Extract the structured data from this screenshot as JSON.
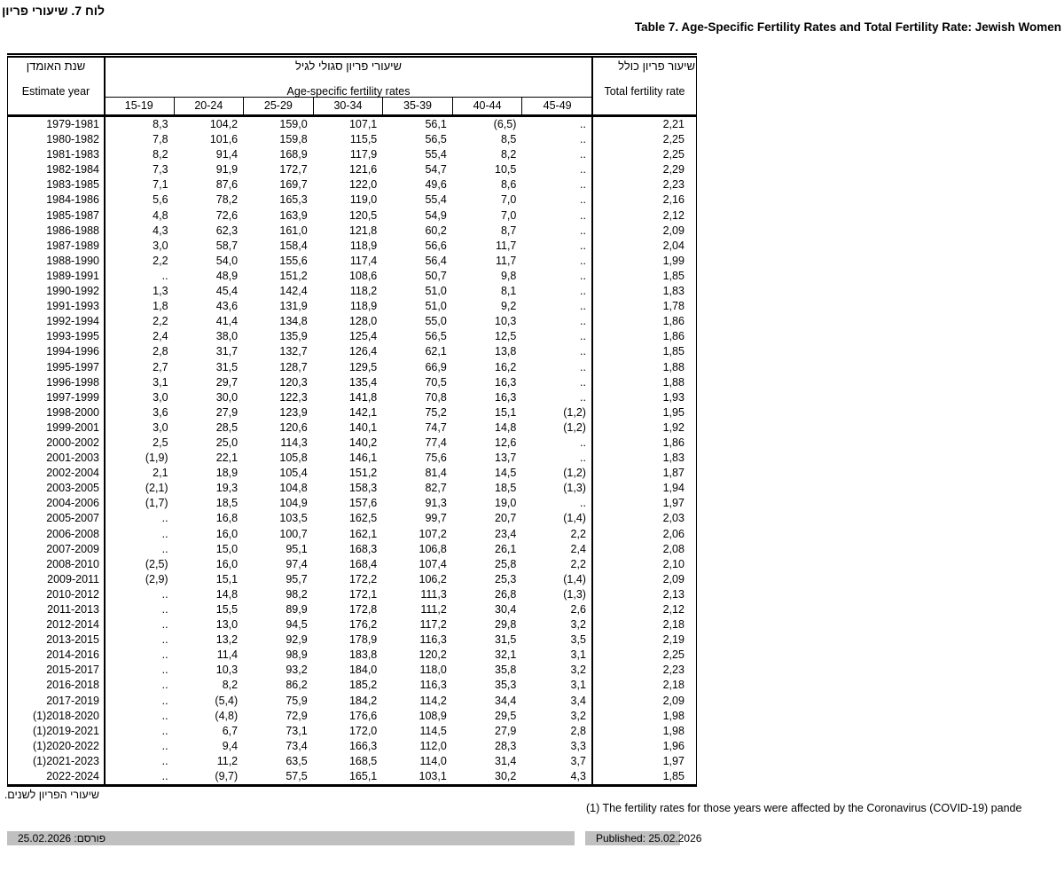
{
  "page": {
    "title_he": "לוח 7. שיעורי פריון",
    "title_en": "Table 7. Age-Specific Fertility Rates and Total Fertility Rate: Jewish Women"
  },
  "table": {
    "header": {
      "year_he": "שנת האומדן",
      "year_en": "Estimate year",
      "age_he": "שיעורי פריון סגולי לגיל",
      "age_en": "Age-specific fertility rates",
      "total_he": "שיעור פריון כולל",
      "total_en": "Total fertility rate",
      "age_groups": [
        "15-19",
        "20-24",
        "25-29",
        "30-34",
        "35-39",
        "40-44",
        "45-49"
      ]
    },
    "rows": [
      {
        "year": "1979-1981",
        "a1": "8,3",
        "a2": "104,2",
        "a3": "159,0",
        "a4": "107,1",
        "a5": "56,1",
        "a6": "(6,5)",
        "a7": "..",
        "tfr": "2,21"
      },
      {
        "year": "1980-1982",
        "a1": "7,8",
        "a2": "101,6",
        "a3": "159,8",
        "a4": "115,5",
        "a5": "56,5",
        "a6": "8,5",
        "a7": "..",
        "tfr": "2,25"
      },
      {
        "year": "1981-1983",
        "a1": "8,2",
        "a2": "91,4",
        "a3": "168,9",
        "a4": "117,9",
        "a5": "55,4",
        "a6": "8,2",
        "a7": "..",
        "tfr": "2,25"
      },
      {
        "year": "1982-1984",
        "a1": "7,3",
        "a2": "91,9",
        "a3": "172,7",
        "a4": "121,6",
        "a5": "54,7",
        "a6": "10,5",
        "a7": "..",
        "tfr": "2,29"
      },
      {
        "year": "1983-1985",
        "a1": "7,1",
        "a2": "87,6",
        "a3": "169,7",
        "a4": "122,0",
        "a5": "49,6",
        "a6": "8,6",
        "a7": "..",
        "tfr": "2,23"
      },
      {
        "year": "1984-1986",
        "a1": "5,6",
        "a2": "78,2",
        "a3": "165,3",
        "a4": "119,0",
        "a5": "55,4",
        "a6": "7,0",
        "a7": "..",
        "tfr": "2,16"
      },
      {
        "year": "1985-1987",
        "a1": "4,8",
        "a2": "72,6",
        "a3": "163,9",
        "a4": "120,5",
        "a5": "54,9",
        "a6": "7,0",
        "a7": "..",
        "tfr": "2,12"
      },
      {
        "year": "1986-1988",
        "a1": "4,3",
        "a2": "62,3",
        "a3": "161,0",
        "a4": "121,8",
        "a5": "60,2",
        "a6": "8,7",
        "a7": "..",
        "tfr": "2,09"
      },
      {
        "year": "1987-1989",
        "a1": "3,0",
        "a2": "58,7",
        "a3": "158,4",
        "a4": "118,9",
        "a5": "56,6",
        "a6": "11,7",
        "a7": "..",
        "tfr": "2,04"
      },
      {
        "year": "1988-1990",
        "a1": "2,2",
        "a2": "54,0",
        "a3": "155,6",
        "a4": "117,4",
        "a5": "56,4",
        "a6": "11,7",
        "a7": "..",
        "tfr": "1,99"
      },
      {
        "year": "1989-1991",
        "a1": "..",
        "a2": "48,9",
        "a3": "151,2",
        "a4": "108,6",
        "a5": "50,7",
        "a6": "9,8",
        "a7": "..",
        "tfr": "1,85"
      },
      {
        "year": "1990-1992",
        "a1": "1,3",
        "a2": "45,4",
        "a3": "142,4",
        "a4": "118,2",
        "a5": "51,0",
        "a6": "8,1",
        "a7": "..",
        "tfr": "1,83"
      },
      {
        "year": "1991-1993",
        "a1": "1,8",
        "a2": "43,6",
        "a3": "131,9",
        "a4": "118,9",
        "a5": "51,0",
        "a6": "9,2",
        "a7": "..",
        "tfr": "1,78"
      },
      {
        "year": "1992-1994",
        "a1": "2,2",
        "a2": "41,4",
        "a3": "134,8",
        "a4": "128,0",
        "a5": "55,0",
        "a6": "10,3",
        "a7": "..",
        "tfr": "1,86"
      },
      {
        "year": "1993-1995",
        "a1": "2,4",
        "a2": "38,0",
        "a3": "135,9",
        "a4": "125,4",
        "a5": "56,5",
        "a6": "12,5",
        "a7": "..",
        "tfr": "1,86"
      },
      {
        "year": "1994-1996",
        "a1": "2,8",
        "a2": "31,7",
        "a3": "132,7",
        "a4": "126,4",
        "a5": "62,1",
        "a6": "13,8",
        "a7": "..",
        "tfr": "1,85"
      },
      {
        "year": "1995-1997",
        "a1": "2,7",
        "a2": "31,5",
        "a3": "128,7",
        "a4": "129,5",
        "a5": "66,9",
        "a6": "16,2",
        "a7": "..",
        "tfr": "1,88"
      },
      {
        "year": "1996-1998",
        "a1": "3,1",
        "a2": "29,7",
        "a3": "120,3",
        "a4": "135,4",
        "a5": "70,5",
        "a6": "16,3",
        "a7": "..",
        "tfr": "1,88"
      },
      {
        "year": "1997-1999",
        "a1": "3,0",
        "a2": "30,0",
        "a3": "122,3",
        "a4": "141,8",
        "a5": "70,8",
        "a6": "16,3",
        "a7": "..",
        "tfr": "1,93"
      },
      {
        "year": "1998-2000",
        "a1": "3,6",
        "a2": "27,9",
        "a3": "123,9",
        "a4": "142,1",
        "a5": "75,2",
        "a6": "15,1",
        "a7": "(1,2)",
        "tfr": "1,95"
      },
      {
        "year": "1999-2001",
        "a1": "3,0",
        "a2": "28,5",
        "a3": "120,6",
        "a4": "140,1",
        "a5": "74,7",
        "a6": "14,8",
        "a7": "(1,2)",
        "tfr": "1,92"
      },
      {
        "year": "2000-2002",
        "a1": "2,5",
        "a2": "25,0",
        "a3": "114,3",
        "a4": "140,2",
        "a5": "77,4",
        "a6": "12,6",
        "a7": "..",
        "tfr": "1,86"
      },
      {
        "year": "2001-2003",
        "a1": "(1,9)",
        "a2": "22,1",
        "a3": "105,8",
        "a4": "146,1",
        "a5": "75,6",
        "a6": "13,7",
        "a7": "..",
        "tfr": "1,83"
      },
      {
        "year": "2002-2004",
        "a1": "2,1",
        "a2": "18,9",
        "a3": "105,4",
        "a4": "151,2",
        "a5": "81,4",
        "a6": "14,5",
        "a7": "(1,2)",
        "tfr": "1,87"
      },
      {
        "year": "2003-2005",
        "a1": "(2,1)",
        "a2": "19,3",
        "a3": "104,8",
        "a4": "158,3",
        "a5": "82,7",
        "a6": "18,5",
        "a7": "(1,3)",
        "tfr": "1,94"
      },
      {
        "year": "2004-2006",
        "a1": "(1,7)",
        "a2": "18,5",
        "a3": "104,9",
        "a4": "157,6",
        "a5": "91,3",
        "a6": "19,0",
        "a7": "..",
        "tfr": "1,97"
      },
      {
        "year": "2005-2007",
        "a1": "..",
        "a2": "16,8",
        "a3": "103,5",
        "a4": "162,5",
        "a5": "99,7",
        "a6": "20,7",
        "a7": "(1,4)",
        "tfr": "2,03"
      },
      {
        "year": "2006-2008",
        "a1": "..",
        "a2": "16,0",
        "a3": "100,7",
        "a4": "162,1",
        "a5": "107,2",
        "a6": "23,4",
        "a7": "2,2",
        "tfr": "2,06"
      },
      {
        "year": "2007-2009",
        "a1": "..",
        "a2": "15,0",
        "a3": "95,1",
        "a4": "168,3",
        "a5": "106,8",
        "a6": "26,1",
        "a7": "2,4",
        "tfr": "2,08"
      },
      {
        "year": "2008-2010",
        "a1": "(2,5)",
        "a2": "16,0",
        "a3": "97,4",
        "a4": "168,4",
        "a5": "107,4",
        "a6": "25,8",
        "a7": "2,2",
        "tfr": "2,10"
      },
      {
        "year": "2009-2011",
        "a1": "(2,9)",
        "a2": "15,1",
        "a3": "95,7",
        "a4": "172,2",
        "a5": "106,2",
        "a6": "25,3",
        "a7": "(1,4)",
        "tfr": "2,09"
      },
      {
        "year": "2010-2012",
        "a1": "..",
        "a2": "14,8",
        "a3": "98,2",
        "a4": "172,1",
        "a5": "111,3",
        "a6": "26,8",
        "a7": "(1,3)",
        "tfr": "2,13"
      },
      {
        "year": "2011-2013",
        "a1": "..",
        "a2": "15,5",
        "a3": "89,9",
        "a4": "172,8",
        "a5": "111,2",
        "a6": "30,4",
        "a7": "2,6",
        "tfr": "2,12"
      },
      {
        "year": "2012-2014",
        "a1": "..",
        "a2": "13,0",
        "a3": "94,5",
        "a4": "176,2",
        "a5": "117,2",
        "a6": "29,8",
        "a7": "3,2",
        "tfr": "2,18"
      },
      {
        "year": "2013-2015",
        "a1": "..",
        "a2": "13,2",
        "a3": "92,9",
        "a4": "178,9",
        "a5": "116,3",
        "a6": "31,5",
        "a7": "3,5",
        "tfr": "2,19"
      },
      {
        "year": "2014-2016",
        "a1": "..",
        "a2": "11,4",
        "a3": "98,9",
        "a4": "183,8",
        "a5": "120,2",
        "a6": "32,1",
        "a7": "3,1",
        "tfr": "2,25"
      },
      {
        "year": "2015-2017",
        "a1": "..",
        "a2": "10,3",
        "a3": "93,2",
        "a4": "184,0",
        "a5": "118,0",
        "a6": "35,8",
        "a7": "3,2",
        "tfr": "2,23"
      },
      {
        "year": "2016-2018",
        "a1": "..",
        "a2": "8,2",
        "a3": "86,2",
        "a4": "185,2",
        "a5": "116,3",
        "a6": "35,3",
        "a7": "3,1",
        "tfr": "2,18"
      },
      {
        "year": "2017-2019",
        "a1": "..",
        "a2": "(5,4)",
        "a3": "75,9",
        "a4": "184,2",
        "a5": "114,2",
        "a6": "34,4",
        "a7": "3,4",
        "tfr": "2,09"
      },
      {
        "year": "(1)2018-2020",
        "a1": "..",
        "a2": "(4,8)",
        "a3": "72,9",
        "a4": "176,6",
        "a5": "108,9",
        "a6": "29,5",
        "a7": "3,2",
        "tfr": "1,98"
      },
      {
        "year": "(1)2019-2021",
        "a1": "..",
        "a2": "6,7",
        "a3": "73,1",
        "a4": "172,0",
        "a5": "114,5",
        "a6": "27,9",
        "a7": "2,8",
        "tfr": "1,98"
      },
      {
        "year": "(1)2020-2022",
        "a1": "..",
        "a2": "9,4",
        "a3": "73,4",
        "a4": "166,3",
        "a5": "112,0",
        "a6": "28,3",
        "a7": "3,3",
        "tfr": "1,96"
      },
      {
        "year": "(1)2021-2023",
        "a1": "..",
        "a2": "11,2",
        "a3": "63,5",
        "a4": "168,5",
        "a5": "114,0",
        "a6": "31,4",
        "a7": "3,7",
        "tfr": "1,97"
      },
      {
        "year": "2022-2024",
        "a1": "..",
        "a2": "(9,7)",
        "a3": "57,5",
        "a4": "165,1",
        "a5": "103,1",
        "a6": "30,2",
        "a7": "4,3",
        "tfr": "1,85"
      }
    ]
  },
  "footnotes": {
    "he": "שיעורי הפריון לשנים.",
    "en": "(1) The fertility rates for those years were affected by the Coronavirus (COVID-19) pande"
  },
  "footer": {
    "published_he": "פורסם: 25.02.2026",
    "published_en": "Published: 25.02.2026"
  },
  "colors": {
    "highlight_bar": "#c0c0c0",
    "text": "#000000",
    "background": "#ffffff"
  }
}
